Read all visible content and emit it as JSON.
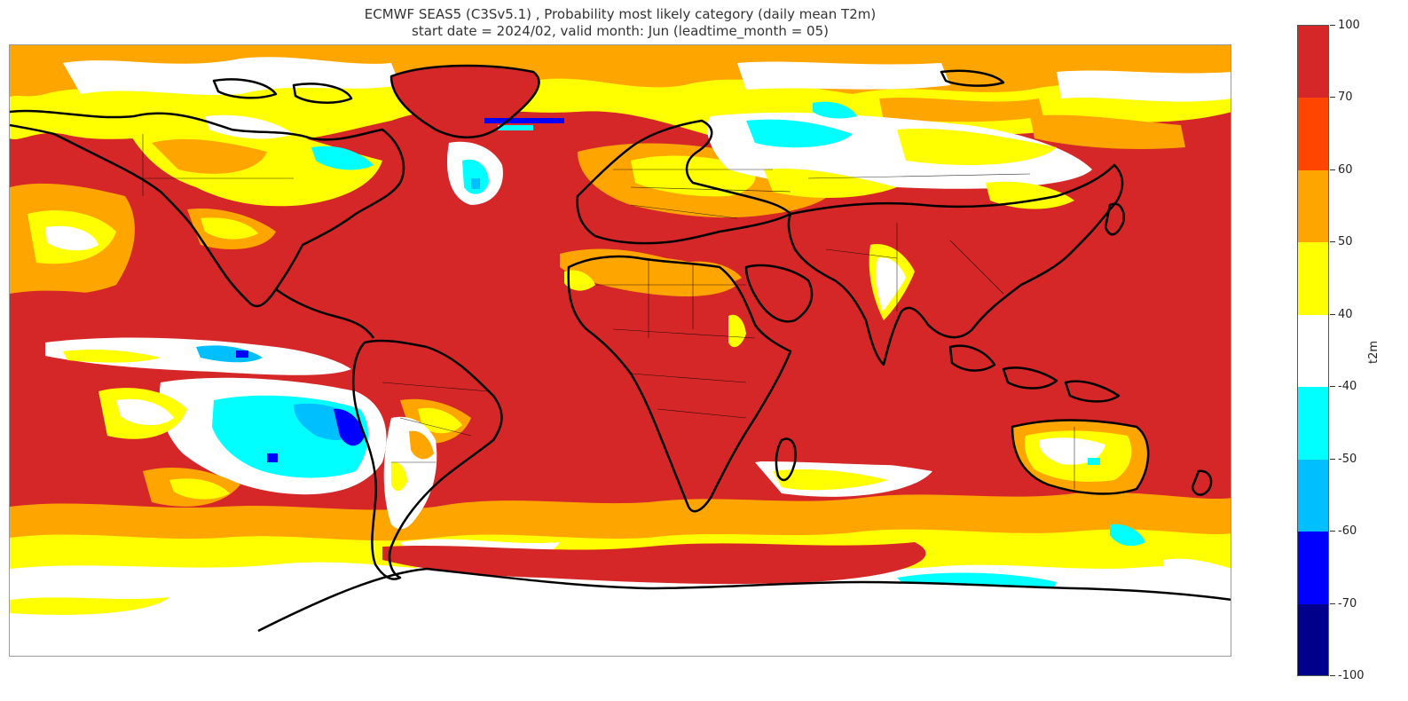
{
  "title": {
    "line1": "ECMWF SEAS5 (C3Sv5.1) , Probability most likely category (daily mean T2m)",
    "line2": "start date = 2024/02, valid month: Jun (leadtime_month = 05)"
  },
  "map": {
    "projection": "PlateCarree",
    "variable": "t2m",
    "palette": {
      "above_70_100": "#d62728",
      "above_60_70": "#ff4500",
      "above_50_60": "#ffa500",
      "above_40_50": "#ffff00",
      "neutral": "#ffffff",
      "below_40_50": "#00ffff",
      "below_50_60": "#00bfff",
      "below_60_70": "#0000ff",
      "below_70_100": "#00008b"
    },
    "coastline_color": "#000000",
    "border_color": "#000000"
  },
  "colorbar": {
    "label": "t2m",
    "ticks": [
      "100",
      "70",
      "60",
      "50",
      "40",
      "-40",
      "-50",
      "-60",
      "-70",
      "-100"
    ],
    "colors": [
      "#d62728",
      "#ff4500",
      "#ffa500",
      "#ffff00",
      "#ffffff",
      "#00ffff",
      "#00bfff",
      "#0000ff",
      "#00008b"
    ]
  }
}
